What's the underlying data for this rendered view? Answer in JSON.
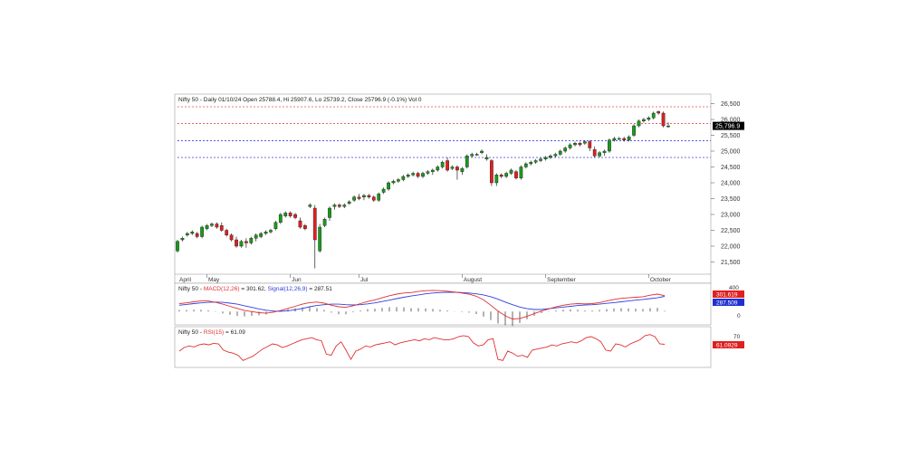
{
  "colors": {
    "up": "#1a9a1a",
    "down": "#e02020",
    "macd": "#e03030",
    "signal": "#3040e0",
    "rsi": "#e03030",
    "resistance": "#e05050",
    "support": "#4040e0",
    "axis": "#606060",
    "close_badge": "#000000"
  },
  "main_panel": {
    "header": "Nifty 50 - Daily 01/10/24 Open 25788.4, Hi 25907.6, Lo 25739.2, Close 25796.9 (-0.1%) Vol 0",
    "close_label": "25,796.9",
    "month_labels": [
      "April",
      "May",
      "Jun",
      "Jul",
      "August",
      "September",
      "October"
    ]
  },
  "macd_panel": {
    "prefix": "Nifty 50 - ",
    "macd_label": "MACD(12,26)",
    "macd_value": " = 301.62, ",
    "signal_label": "Signal(12,26,9)",
    "signal_value": " = 287.51",
    "badge_macd": "301.619",
    "badge_signal": "287.509",
    "tick_top": "400",
    "tick_zero": "0"
  },
  "rsi_panel": {
    "prefix": "Nifty 50 - ",
    "rsi_label": "RSI(15)",
    "rsi_value": " = 61.09",
    "badge": "61.0929",
    "tick_70": "70"
  },
  "chart_data": {
    "type": "candlestick",
    "instrument": "Nifty 50",
    "timeframe": "Daily",
    "y_ticks": [
      21500,
      22000,
      22500,
      23000,
      23500,
      24000,
      24500,
      25000,
      25500,
      26000,
      26500
    ],
    "ylim": [
      21200,
      26800
    ],
    "last_bar": {
      "date": "01/10/24",
      "open": 25788.4,
      "high": 25907.6,
      "low": 25739.2,
      "close": 25796.9,
      "change_pct": -0.1,
      "volume": 0
    },
    "horizontal_levels": [
      {
        "value": 26400,
        "style": "dashed",
        "color": "resistance"
      },
      {
        "value": 25870,
        "style": "dashed",
        "color": "resistance"
      },
      {
        "value": 25330,
        "style": "dashed",
        "color": "support"
      },
      {
        "value": 24800,
        "style": "dashed",
        "color": "support"
      }
    ],
    "candles": [
      [
        21850,
        22200,
        21800,
        22150
      ],
      [
        22200,
        22300,
        22150,
        22250
      ],
      [
        22350,
        22450,
        22300,
        22400
      ],
      [
        22400,
        22500,
        22350,
        22450
      ],
      [
        22400,
        22450,
        22250,
        22300
      ],
      [
        22300,
        22650,
        22250,
        22600
      ],
      [
        22550,
        22700,
        22500,
        22650
      ],
      [
        22650,
        22750,
        22600,
        22700
      ],
      [
        22700,
        22750,
        22550,
        22600
      ],
      [
        22650,
        22750,
        22450,
        22500
      ],
      [
        22500,
        22550,
        22300,
        22350
      ],
      [
        22350,
        22400,
        22150,
        22200
      ],
      [
        22200,
        22300,
        21950,
        22000
      ],
      [
        22000,
        22200,
        21950,
        22150
      ],
      [
        22150,
        22250,
        21950,
        22100
      ],
      [
        22100,
        22300,
        22050,
        22250
      ],
      [
        22250,
        22400,
        22150,
        22350
      ],
      [
        22300,
        22450,
        22250,
        22400
      ],
      [
        22400,
        22500,
        22350,
        22450
      ],
      [
        22450,
        22550,
        22400,
        22500
      ],
      [
        22550,
        22800,
        22500,
        22750
      ],
      [
        22750,
        23050,
        22700,
        23000
      ],
      [
        22950,
        23100,
        22900,
        23050
      ],
      [
        23050,
        23100,
        22900,
        22950
      ],
      [
        23000,
        23050,
        22850,
        22900
      ],
      [
        22800,
        22900,
        22550,
        22600
      ],
      [
        22650,
        22700,
        22500,
        22550
      ],
      [
        23250,
        23350,
        23200,
        23300
      ],
      [
        23200,
        23300,
        21300,
        22200
      ],
      [
        21850,
        22700,
        21800,
        22600
      ],
      [
        22650,
        22900,
        22600,
        22850
      ],
      [
        22900,
        23250,
        22800,
        23200
      ],
      [
        23250,
        23350,
        23150,
        23300
      ],
      [
        23300,
        23350,
        23200,
        23250
      ],
      [
        23250,
        23350,
        23200,
        23300
      ],
      [
        23350,
        23450,
        23300,
        23400
      ],
      [
        23450,
        23600,
        23400,
        23550
      ],
      [
        23550,
        23650,
        23450,
        23500
      ],
      [
        23550,
        23650,
        23450,
        23600
      ],
      [
        23600,
        23650,
        23500,
        23550
      ],
      [
        23550,
        23600,
        23400,
        23450
      ],
      [
        23450,
        23700,
        23400,
        23650
      ],
      [
        23700,
        23850,
        23650,
        23800
      ],
      [
        23800,
        24050,
        23750,
        24000
      ],
      [
        24000,
        24100,
        23950,
        24050
      ],
      [
        24050,
        24150,
        24000,
        24100
      ],
      [
        24100,
        24250,
        24050,
        24200
      ],
      [
        24200,
        24300,
        24150,
        24250
      ],
      [
        24250,
        24350,
        24200,
        24300
      ],
      [
        24300,
        24350,
        24150,
        24200
      ],
      [
        24200,
        24350,
        24150,
        24300
      ],
      [
        24300,
        24400,
        24250,
        24350
      ],
      [
        24350,
        24450,
        24250,
        24400
      ],
      [
        24400,
        24550,
        24350,
        24500
      ],
      [
        24500,
        24700,
        24450,
        24650
      ],
      [
        24700,
        24800,
        24350,
        24400
      ],
      [
        24450,
        24550,
        24400,
        24500
      ],
      [
        24500,
        24550,
        24100,
        24400
      ],
      [
        24350,
        24500,
        24250,
        24450
      ],
      [
        24500,
        24900,
        24450,
        24850
      ],
      [
        24850,
        24950,
        24800,
        24900
      ],
      [
        24900,
        24950,
        24850,
        24900
      ],
      [
        24950,
        25050,
        24900,
        25000
      ],
      [
        24750,
        24900,
        24700,
        24800
      ],
      [
        24700,
        24750,
        23900,
        24000
      ],
      [
        24000,
        24300,
        23900,
        24250
      ],
      [
        24250,
        24300,
        24150,
        24200
      ],
      [
        24200,
        24350,
        24150,
        24300
      ],
      [
        24300,
        24450,
        24250,
        24400
      ],
      [
        24350,
        24400,
        24100,
        24150
      ],
      [
        24150,
        24550,
        24100,
        24500
      ],
      [
        24500,
        24650,
        24450,
        24600
      ],
      [
        24600,
        24700,
        24550,
        24650
      ],
      [
        24650,
        24750,
        24600,
        24700
      ],
      [
        24700,
        24800,
        24650,
        24750
      ],
      [
        24750,
        24850,
        24700,
        24800
      ],
      [
        24800,
        24900,
        24750,
        24850
      ],
      [
        24850,
        24950,
        24800,
        24900
      ],
      [
        24900,
        25050,
        24850,
        25000
      ],
      [
        25000,
        25150,
        24950,
        25100
      ],
      [
        25100,
        25250,
        25050,
        25200
      ],
      [
        25200,
        25300,
        25150,
        25250
      ],
      [
        25250,
        25300,
        25150,
        25200
      ],
      [
        25250,
        25350,
        25200,
        25300
      ],
      [
        25300,
        25350,
        25000,
        25100
      ],
      [
        25050,
        25150,
        24800,
        24850
      ],
      [
        24850,
        25000,
        24800,
        24950
      ],
      [
        24950,
        25050,
        24850,
        25000
      ],
      [
        25000,
        25400,
        24950,
        25350
      ],
      [
        25350,
        25450,
        25300,
        25400
      ],
      [
        25400,
        25450,
        25350,
        25400
      ],
      [
        25400,
        25450,
        25300,
        25350
      ],
      [
        25350,
        25500,
        25300,
        25450
      ],
      [
        25500,
        25850,
        25450,
        25800
      ],
      [
        25800,
        26000,
        25750,
        25950
      ],
      [
        25950,
        26050,
        25900,
        26000
      ],
      [
        26000,
        26100,
        25950,
        26050
      ],
      [
        26050,
        26250,
        26000,
        26200
      ],
      [
        26250,
        26280,
        26150,
        26200
      ],
      [
        26200,
        26250,
        25750,
        25800
      ],
      [
        25788.4,
        25907.6,
        25739.2,
        25796.9
      ]
    ],
    "macd": {
      "ylim": [
        -200,
        450
      ],
      "macd_line": [
        150,
        165,
        185,
        200,
        200,
        175,
        140,
        100,
        60,
        20,
        0,
        -20,
        -30,
        -10,
        20,
        60,
        100,
        140,
        170,
        180,
        160,
        120,
        90,
        80,
        110,
        150,
        190,
        220,
        260,
        300,
        330,
        350,
        360,
        380,
        395,
        400,
        395,
        385,
        370,
        350,
        330,
        290,
        220,
        120,
        10,
        -80,
        -140,
        -130,
        -90,
        -40,
        10,
        50,
        90,
        120,
        140,
        150,
        145,
        150,
        170,
        200,
        230,
        250,
        260,
        270,
        280,
        310,
        330,
        301.62
      ],
      "signal_line": [
        120,
        135,
        150,
        165,
        175,
        180,
        175,
        160,
        140,
        110,
        80,
        50,
        25,
        10,
        5,
        15,
        35,
        60,
        90,
        115,
        130,
        140,
        140,
        130,
        125,
        130,
        145,
        165,
        190,
        215,
        245,
        270,
        295,
        315,
        335,
        350,
        360,
        365,
        365,
        360,
        350,
        335,
        315,
        280,
        235,
        180,
        130,
        85,
        55,
        40,
        40,
        55,
        70,
        85,
        100,
        115,
        125,
        130,
        140,
        155,
        170,
        185,
        200,
        215,
        230,
        245,
        260,
        287.51
      ],
      "histogram": [
        30,
        30,
        35,
        35,
        25,
        -5,
        -35,
        -60,
        -80,
        -90,
        -80,
        -70,
        -55,
        -20,
        15,
        45,
        65,
        80,
        80,
        65,
        30,
        -20,
        -50,
        -50,
        -15,
        20,
        45,
        55,
        70,
        85,
        85,
        80,
        65,
        65,
        60,
        50,
        35,
        20,
        5,
        -10,
        -20,
        -45,
        -95,
        -160,
        -225,
        -260,
        -270,
        -215,
        -145,
        -80,
        -30,
        -5,
        20,
        35,
        40,
        35,
        20,
        20,
        30,
        45,
        60,
        65,
        60,
        55,
        50,
        65,
        70,
        14.11
      ],
      "y_ticks": [
        400,
        0
      ]
    },
    "rsi": {
      "period": 15,
      "ylim": [
        20,
        90
      ],
      "values": [
        48,
        55,
        58,
        56,
        60,
        62,
        60,
        63,
        62,
        50,
        46,
        44,
        40,
        30,
        34,
        38,
        45,
        52,
        57,
        62,
        60,
        55,
        58,
        62,
        66,
        70,
        72,
        74,
        70,
        68,
        42,
        40,
        58,
        66,
        50,
        32,
        48,
        52,
        58,
        56,
        60,
        62,
        64,
        66,
        60,
        64,
        66,
        68,
        70,
        68,
        72,
        70,
        74,
        72,
        70,
        70,
        72,
        76,
        78,
        76,
        64,
        58,
        60,
        70,
        72,
        32,
        30,
        48,
        44,
        38,
        40,
        36,
        50,
        52,
        54,
        56,
        60,
        58,
        62,
        64,
        66,
        64,
        68,
        74,
        76,
        72,
        66,
        50,
        48,
        62,
        60,
        56,
        62,
        66,
        70,
        78,
        80,
        76,
        62,
        61.09
      ],
      "y_ticks": [
        70
      ]
    }
  }
}
